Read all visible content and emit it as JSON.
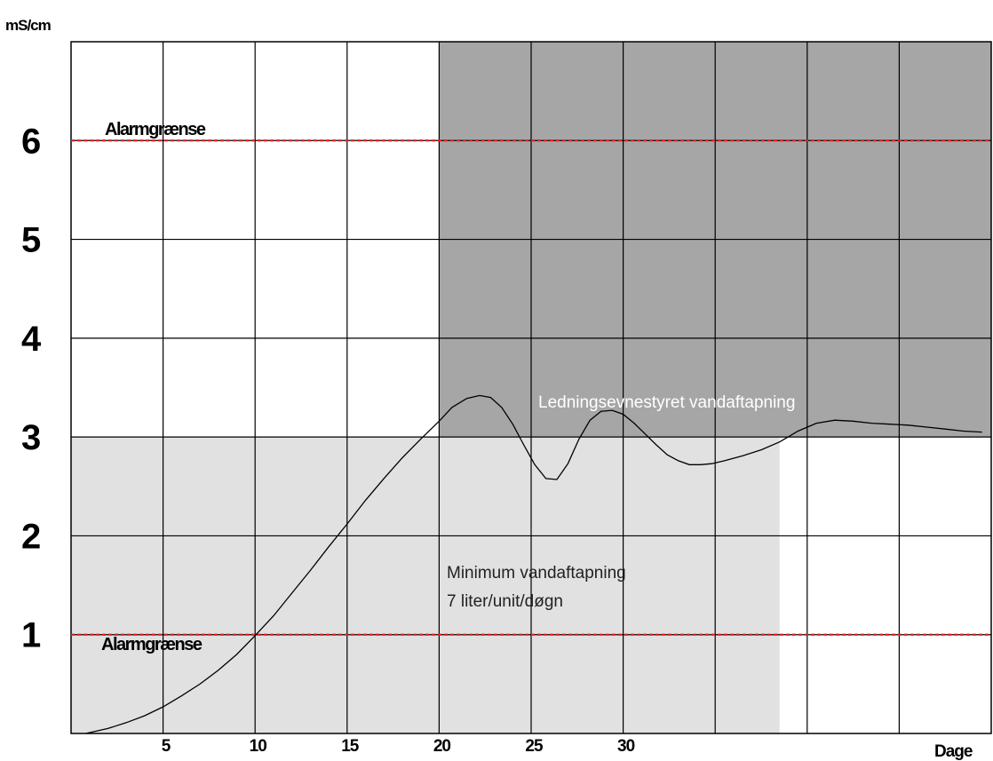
{
  "chart_data": {
    "type": "line",
    "title": "",
    "ylabel": "mS/cm",
    "xlabel": "Dage",
    "xlim": [
      0,
      50
    ],
    "ylim": [
      0,
      7
    ],
    "grid": true,
    "y_ticks": [
      {
        "value": 1,
        "label": "1"
      },
      {
        "value": 2,
        "label": "2"
      },
      {
        "value": 3,
        "label": "3"
      },
      {
        "value": 4,
        "label": "4"
      },
      {
        "value": 5,
        "label": "5"
      },
      {
        "value": 6,
        "label": "6"
      }
    ],
    "x_ticks": [
      {
        "value": 5,
        "label": "5"
      },
      {
        "value": 10,
        "label": "10"
      },
      {
        "value": 15,
        "label": "15"
      },
      {
        "value": 20,
        "label": "20"
      },
      {
        "value": 25,
        "label": "25"
      },
      {
        "value": 30,
        "label": "30"
      }
    ],
    "thresholds": [
      {
        "value": 6.0,
        "label": "Alarmgrænse",
        "color": "#e02020"
      },
      {
        "value": 1.0,
        "label": "Alarmgrænse",
        "color": "#e02020"
      }
    ],
    "regions": [
      {
        "label": "Ledningsevnestyret vandaftapning",
        "x": [
          20,
          50
        ],
        "y": [
          3,
          7
        ],
        "color": "#a6a6a6",
        "text_color": "#ffffff"
      },
      {
        "label_lines": [
          "Minimum vandaftapning",
          "7 liter/unit/døgn"
        ],
        "x": [
          0,
          38.5
        ],
        "y": [
          0,
          3
        ],
        "color": "#e1e1e1",
        "text_color": "#222222"
      }
    ],
    "series": [
      {
        "x": [
          0.8,
          2,
          3,
          4,
          5,
          6,
          7,
          8,
          9,
          10,
          11,
          12,
          13,
          14,
          15,
          16,
          17,
          18,
          19,
          20,
          20.7,
          21.5,
          22.2,
          22.8,
          23.4,
          24,
          24.6,
          25.2,
          25.8,
          26.4,
          27,
          27.6,
          28.2,
          28.8,
          29.4,
          30,
          30.6,
          31.2,
          31.8,
          32.4,
          33,
          33.6,
          34.2,
          34.8,
          35.5,
          36.5,
          37.5,
          38.5,
          39.5,
          40.5,
          41.5,
          42.5,
          43.5,
          44.5,
          45.5,
          46.5,
          47.5,
          48.5,
          49.5
        ],
        "y": [
          0.0,
          0.05,
          0.11,
          0.18,
          0.27,
          0.38,
          0.5,
          0.64,
          0.8,
          0.99,
          1.19,
          1.42,
          1.65,
          1.89,
          2.12,
          2.36,
          2.58,
          2.79,
          2.98,
          3.16,
          3.3,
          3.39,
          3.42,
          3.4,
          3.3,
          3.13,
          2.92,
          2.72,
          2.58,
          2.57,
          2.73,
          2.98,
          3.17,
          3.26,
          3.27,
          3.23,
          3.14,
          3.03,
          2.92,
          2.82,
          2.76,
          2.72,
          2.72,
          2.73,
          2.76,
          2.81,
          2.87,
          2.95,
          3.06,
          3.14,
          3.17,
          3.16,
          3.14,
          3.13,
          3.12,
          3.1,
          3.08,
          3.06,
          3.05
        ],
        "color": "#000000"
      }
    ]
  }
}
